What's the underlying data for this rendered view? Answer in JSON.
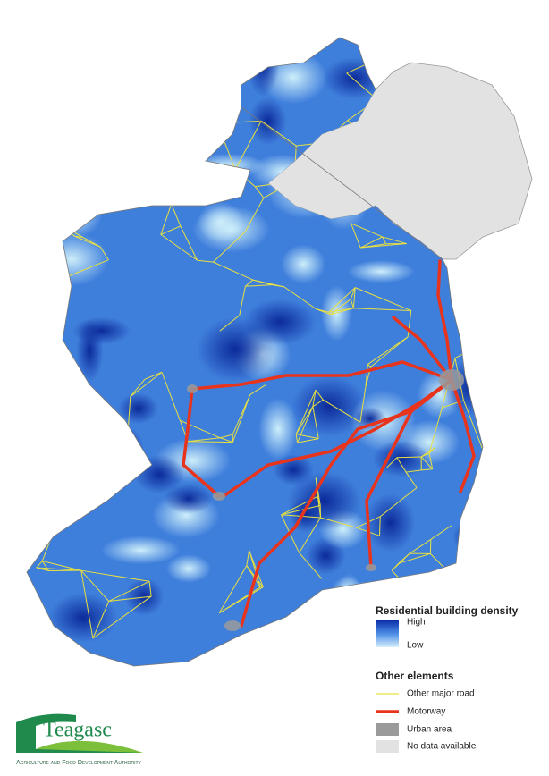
{
  "legend": {
    "density": {
      "title": "Residential building density",
      "high": "High",
      "low": "Low"
    },
    "other": {
      "title": "Other elements",
      "items": [
        "Other major road",
        "Motorway",
        "Urban area",
        "No data available"
      ]
    }
  },
  "logo": {
    "name": "Teagasc",
    "tagline": "Agriculture and Food Development Authority"
  }
}
